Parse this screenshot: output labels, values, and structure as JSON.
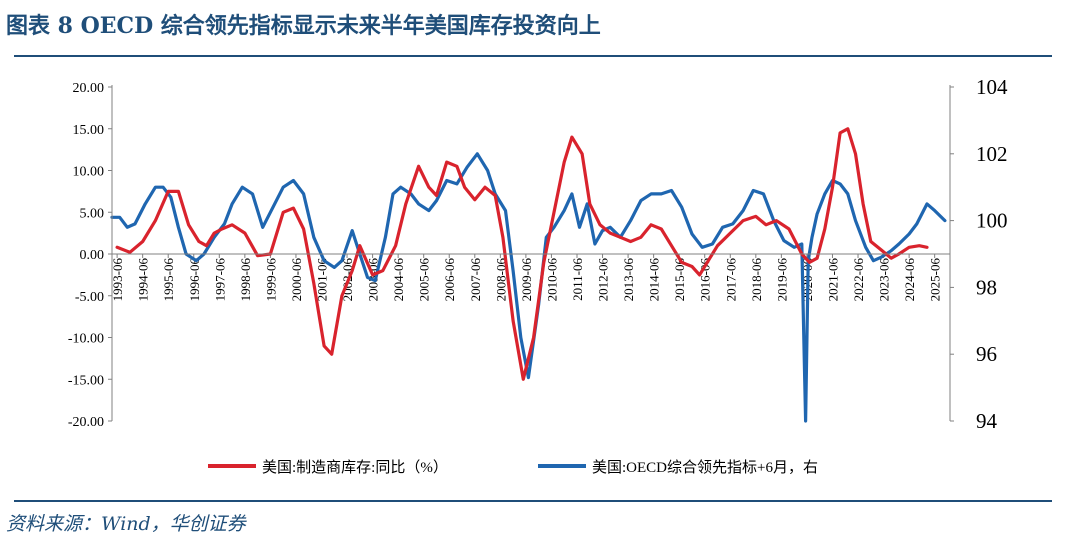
{
  "header": {
    "title": "图表 8 OECD 综合领先指标显示未来半年美国库存投资向上"
  },
  "footer": {
    "source": "资料来源：Wind，华创证券"
  },
  "colors": {
    "series1": "#d9232d",
    "series2": "#1f66b0",
    "title": "#1f4e79",
    "axis": "#808080"
  },
  "chart_data": {
    "type": "line",
    "left_axis": {
      "ticks": [
        "20.00",
        "15.00",
        "10.00",
        "5.00",
        "0.00",
        "-5.00",
        "-10.00",
        "-15.00",
        "-20.00"
      ],
      "ylim": [
        -20,
        20
      ]
    },
    "right_axis": {
      "ticks": [
        "104",
        "102",
        "100",
        "98",
        "96",
        "94"
      ],
      "ylim": [
        94,
        104
      ],
      "side": "right"
    },
    "x_ticks": [
      "1993-06",
      "1994-06",
      "1995-06",
      "1996-06",
      "1997-06",
      "1998-06",
      "1999-06",
      "2000-06",
      "2001-06",
      "2002-06",
      "2003-06",
      "2004-06",
      "2005-06",
      "2006-06",
      "2007-06",
      "2008-06",
      "2009-06",
      "2010-06",
      "2011-06",
      "2012-06",
      "2013-06",
      "2014-06",
      "2015-06",
      "2016-06",
      "2017-06",
      "2018-06",
      "2019-06",
      "2020-06",
      "2021-06",
      "2022-06",
      "2023-06",
      "2024-06",
      "2025-06"
    ],
    "xlim": [
      1993.3,
      2026.1
    ],
    "legend_position": "bottom",
    "series": [
      {
        "name": "美国:制造商库存:同比（%）",
        "axis": "left",
        "x": [
          1993.5,
          1994.0,
          1994.5,
          1995.0,
          1995.5,
          1995.9,
          1996.3,
          1996.7,
          1997.0,
          1997.3,
          1997.6,
          1998.0,
          1998.5,
          1999.0,
          1999.5,
          2000.0,
          2000.4,
          2000.8,
          2001.2,
          2001.6,
          2001.9,
          2002.3,
          2002.7,
          2003.0,
          2003.5,
          2003.9,
          2004.4,
          2004.8,
          2005.3,
          2005.7,
          2006.0,
          2006.4,
          2006.8,
          2007.1,
          2007.5,
          2007.9,
          2008.3,
          2008.6,
          2009.0,
          2009.4,
          2009.8,
          2010.2,
          2010.6,
          2011.0,
          2011.3,
          2011.7,
          2012.0,
          2012.4,
          2012.8,
          2013.2,
          2013.6,
          2014.0,
          2014.4,
          2014.8,
          2015.2,
          2015.6,
          2016.0,
          2016.3,
          2016.7,
          2017.0,
          2017.5,
          2018.0,
          2018.5,
          2018.9,
          2019.3,
          2019.8,
          2020.3,
          2020.6,
          2020.9,
          2021.2,
          2021.5,
          2021.8,
          2022.1,
          2022.4,
          2022.7,
          2023.0,
          2023.4,
          2023.8,
          2024.1,
          2024.5,
          2024.9,
          2025.2
        ],
        "values": [
          0.8,
          0.2,
          1.5,
          4.0,
          7.5,
          7.5,
          3.5,
          1.5,
          1.0,
          2.5,
          3.0,
          3.5,
          2.5,
          -0.2,
          0.0,
          5.0,
          5.5,
          3.0,
          -3.5,
          -11.0,
          -12.0,
          -5.0,
          -2.0,
          1.0,
          -2.5,
          -2.0,
          1.0,
          6.0,
          10.5,
          8.0,
          7.0,
          11.0,
          10.5,
          8.0,
          6.5,
          8.0,
          7.0,
          2.0,
          -8.0,
          -15.0,
          -10.0,
          -1.0,
          5.0,
          11.0,
          14.0,
          12.0,
          6.0,
          3.5,
          2.5,
          2.0,
          1.5,
          2.0,
          3.5,
          3.0,
          1.0,
          -1.0,
          -1.5,
          -2.5,
          -0.5,
          1.0,
          2.5,
          4.0,
          4.5,
          3.5,
          4.0,
          3.0,
          0.0,
          -1.0,
          -0.5,
          3.0,
          8.0,
          14.5,
          15.0,
          12.0,
          6.0,
          1.5,
          0.5,
          -0.5,
          0.0,
          0.8,
          1.0,
          0.8
        ]
      },
      {
        "name": "美国:OECD综合领先指标+6月，右",
        "axis": "right",
        "x": [
          1993.3,
          1993.6,
          1993.9,
          1994.2,
          1994.6,
          1995.0,
          1995.3,
          1995.6,
          1995.9,
          1996.2,
          1996.6,
          1996.9,
          1997.3,
          1997.7,
          1998.0,
          1998.4,
          1998.8,
          1999.2,
          1999.6,
          2000.0,
          2000.4,
          2000.8,
          2001.2,
          2001.6,
          2002.0,
          2002.3,
          2002.7,
          2003.0,
          2003.3,
          2003.6,
          2004.0,
          2004.3,
          2004.6,
          2005.0,
          2005.3,
          2005.7,
          2006.0,
          2006.4,
          2006.8,
          2007.2,
          2007.6,
          2008.0,
          2008.3,
          2008.7,
          2009.0,
          2009.3,
          2009.6,
          2010.0,
          2010.3,
          2010.6,
          2011.0,
          2011.3,
          2011.6,
          2011.9,
          2012.2,
          2012.5,
          2012.8,
          2013.2,
          2013.6,
          2014.0,
          2014.4,
          2014.8,
          2015.2,
          2015.6,
          2016.0,
          2016.4,
          2016.8,
          2017.2,
          2017.6,
          2018.0,
          2018.4,
          2018.8,
          2019.2,
          2019.6,
          2020.0,
          2020.3,
          2020.45,
          2020.55,
          2020.7,
          2020.9,
          2021.2,
          2021.5,
          2021.8,
          2022.1,
          2022.4,
          2022.8,
          2023.1,
          2023.4,
          2023.8,
          2024.1,
          2024.5,
          2024.8,
          2025.2,
          2025.5,
          2025.9
        ],
        "values": [
          100.1,
          100.1,
          99.8,
          99.9,
          100.5,
          101.0,
          101.0,
          100.7,
          99.8,
          99.0,
          98.8,
          99.0,
          99.5,
          99.9,
          100.5,
          101.0,
          100.8,
          99.8,
          100.4,
          101.0,
          101.2,
          100.8,
          99.5,
          98.8,
          98.6,
          98.8,
          99.7,
          99.0,
          98.3,
          98.2,
          99.5,
          100.8,
          101.0,
          100.8,
          100.5,
          100.3,
          100.6,
          101.2,
          101.1,
          101.6,
          102.0,
          101.5,
          100.8,
          100.3,
          98.5,
          96.5,
          95.3,
          97.5,
          99.5,
          99.8,
          100.3,
          100.8,
          99.8,
          100.5,
          99.3,
          99.7,
          99.8,
          99.5,
          100.0,
          100.6,
          100.8,
          100.8,
          100.9,
          100.4,
          99.6,
          99.2,
          99.3,
          99.8,
          99.9,
          100.3,
          100.9,
          100.8,
          100.0,
          99.4,
          99.2,
          99.3,
          94.0,
          98.8,
          99.5,
          100.2,
          100.8,
          101.2,
          101.1,
          100.8,
          100.0,
          99.2,
          98.8,
          98.9,
          99.1,
          99.3,
          99.6,
          99.9,
          100.5,
          100.3,
          100.0
        ]
      }
    ]
  }
}
